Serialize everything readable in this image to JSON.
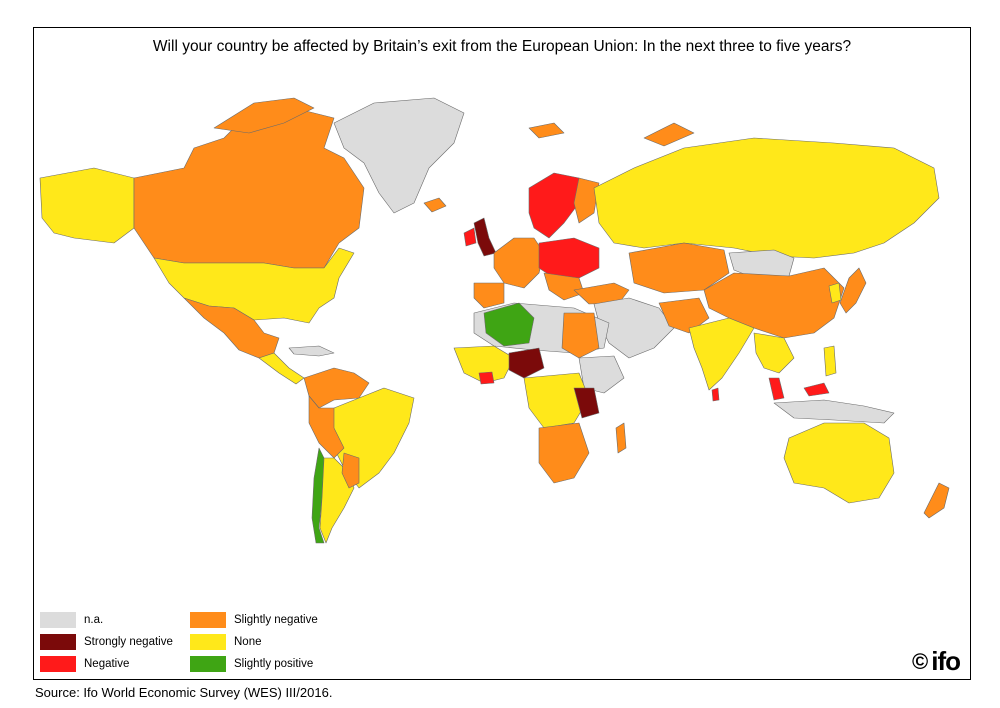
{
  "title": "Will your country be affected by Britain’s exit from the European Union: In the next three to five years?",
  "legend": {
    "items": [
      {
        "label": "n.a.",
        "color": "#dcdcdc"
      },
      {
        "label": "Strongly negative",
        "color": "#7b0a0a"
      },
      {
        "label": "Negative",
        "color": "#ff1a1a"
      },
      {
        "label": "Slightly negative",
        "color": "#ff8c1a"
      },
      {
        "label": "None",
        "color": "#ffe81a"
      },
      {
        "label": "Slightly positive",
        "color": "#3fa514"
      }
    ]
  },
  "logo": {
    "copyright": "©",
    "brand": "ifo"
  },
  "source": "Source: Ifo World Economic Survey (WES) III/2016.",
  "colors": {
    "na": "#dcdcdc",
    "strongly_negative": "#7b0a0a",
    "negative": "#ff1a1a",
    "slightly_negative": "#ff8c1a",
    "none": "#ffe81a",
    "slightly_positive": "#3fa514",
    "border": "#6b6b6b"
  }
}
